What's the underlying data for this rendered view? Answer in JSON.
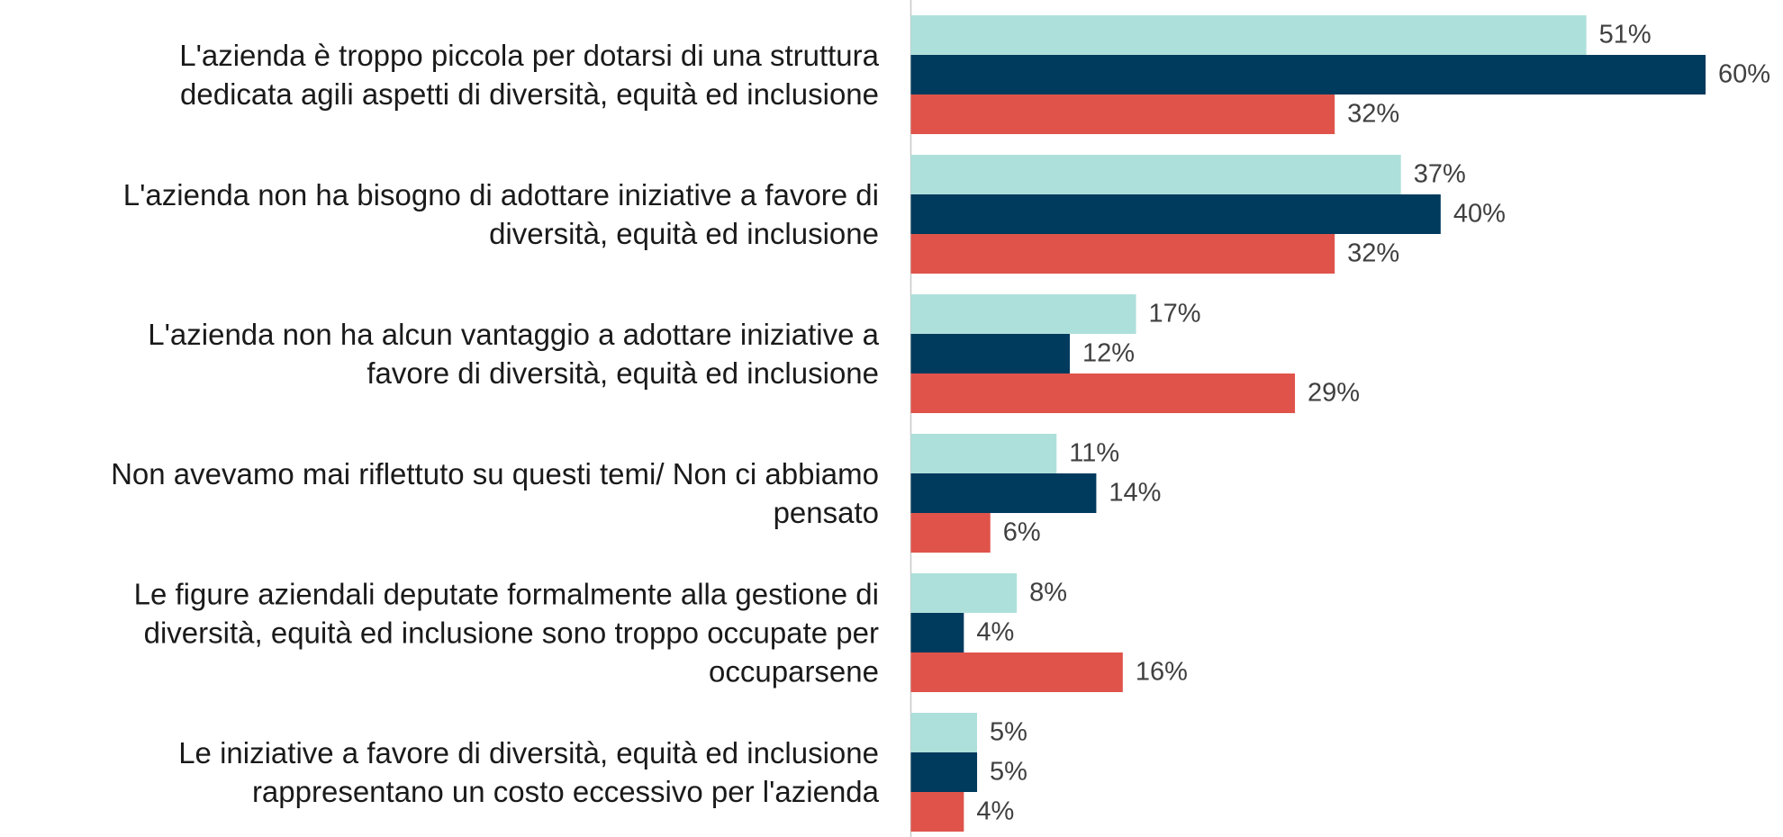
{
  "chart_data": {
    "type": "bar",
    "orientation": "horizontal",
    "categories": [
      "L'azienda è troppo piccola per dotarsi di una struttura\ndedicata agili aspetti di diversità, equità ed inclusione",
      "L'azienda non ha bisogno di adottare iniziative a favore di\ndiversità, equità ed inclusione",
      "L'azienda non ha alcun vantaggio a adottare iniziative a\nfavore di diversità, equità ed inclusione",
      "Non avevamo mai riflettuto su questi temi/ Non ci abbiamo\npensato",
      "Le figure aziendali deputate formalmente alla gestione di\ndiversità, equità ed inclusione sono troppo occupate per\noccuparsene",
      "Le iniziative a favore di diversità, equità ed inclusione\nrappresentano un costo eccessivo per l'azienda"
    ],
    "series": [
      {
        "color": "#aee0db",
        "values": [
          51,
          37,
          17,
          11,
          8,
          5
        ],
        "value_labels": [
          "51%",
          "37%",
          "17%",
          "11%",
          "8%",
          "5%"
        ]
      },
      {
        "color": "#003a5d",
        "values": [
          60,
          40,
          12,
          14,
          4,
          5
        ],
        "value_labels": [
          "60%",
          "40%",
          "12%",
          "14%",
          "4%",
          "5%"
        ]
      },
      {
        "color": "#e0534a",
        "values": [
          32,
          32,
          29,
          6,
          16,
          4
        ],
        "value_labels": [
          "32%",
          "32%",
          "29%",
          "6%",
          "16%",
          "4%"
        ]
      }
    ]
  }
}
